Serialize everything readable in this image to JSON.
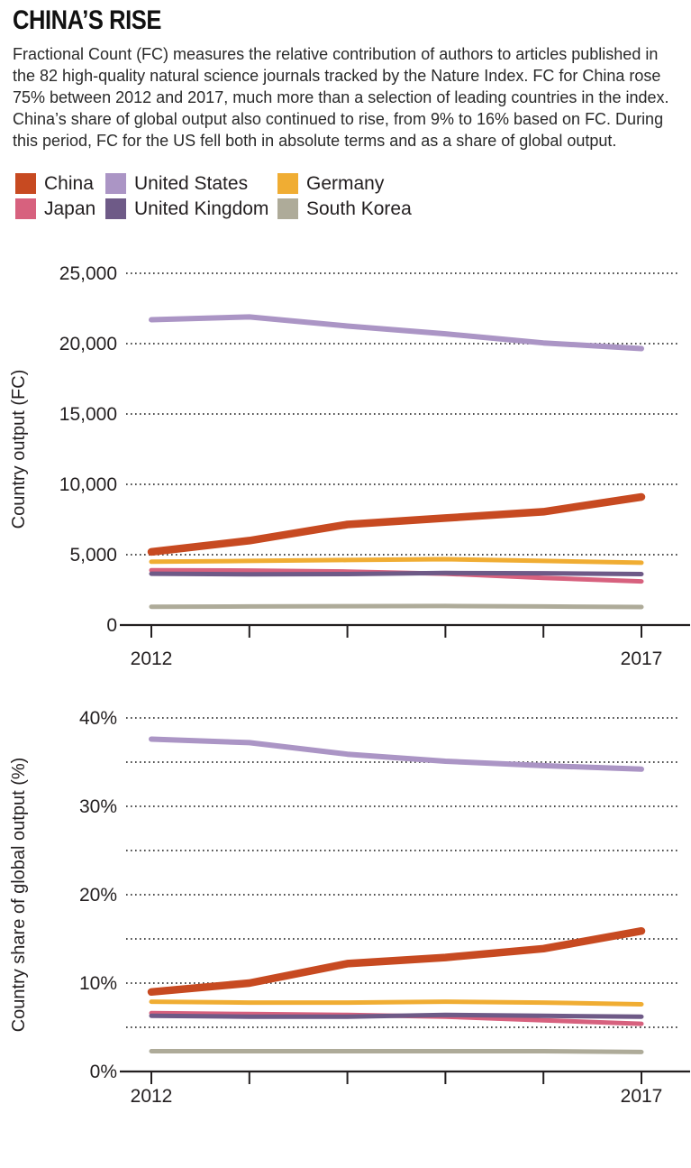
{
  "header": {
    "title": "CHINA’S RISE",
    "description": "Fractional Count (FC) measures the relative contribution of authors to articles published in the 82 high-quality natural science journals tracked by the Nature Index. FC for China rose 75% between 2012 and 2017, much more than a selection of leading countries in the index. China’s share of global output also continued to rise, from 9% to 16% based on FC. During this period, FC for the US fell both in absolute terms and as a share of global output.",
    "highlight_stats": {
      "china_fc_growth": "75%",
      "china_share_2012": "9%",
      "china_share_2017": "16%"
    }
  },
  "legend": {
    "position": "top-left",
    "items": [
      {
        "label": "China",
        "color": "#c74a21"
      },
      {
        "label": "United States",
        "color": "#ab95c5"
      },
      {
        "label": "Germany",
        "color": "#f0ad33"
      },
      {
        "label": "Japan",
        "color": "#d7617e"
      },
      {
        "label": "United Kingdom",
        "color": "#6e5a87"
      },
      {
        "label": "South Korea",
        "color": "#aeab99"
      }
    ]
  },
  "chart_data": [
    {
      "type": "line",
      "title": "",
      "ylabel": "Country output (FC)",
      "x": [
        2012,
        2013,
        2014,
        2015,
        2016,
        2017
      ],
      "xtick_labels": [
        "2012",
        "",
        "",
        "",
        "",
        "2017"
      ],
      "ylim": [
        0,
        26500
      ],
      "yticks": [
        0,
        5000,
        10000,
        15000,
        20000,
        25000
      ],
      "ytick_labels": [
        "0",
        "5,000",
        "10,000",
        "15,000",
        "20,000",
        "25,000"
      ],
      "grid": "dotted-horizontal",
      "series": [
        {
          "name": "United States",
          "color": "#ab95c5",
          "stroke_width": 6,
          "values": [
            21700,
            21900,
            21250,
            20700,
            20050,
            19650
          ]
        },
        {
          "name": "South Korea",
          "color": "#aeab99",
          "stroke_width": 5,
          "values": [
            1300,
            1320,
            1340,
            1350,
            1320,
            1280
          ]
        },
        {
          "name": "Germany",
          "color": "#f0ad33",
          "stroke_width": 5,
          "values": [
            4500,
            4560,
            4620,
            4680,
            4560,
            4430
          ]
        },
        {
          "name": "Japan",
          "color": "#d7617e",
          "stroke_width": 5,
          "values": [
            3900,
            3870,
            3800,
            3650,
            3350,
            3100
          ]
        },
        {
          "name": "United Kingdom",
          "color": "#6e5a87",
          "stroke_width": 5,
          "values": [
            3650,
            3600,
            3620,
            3700,
            3680,
            3620
          ]
        },
        {
          "name": "China",
          "color": "#c74a21",
          "stroke_width": 8.5,
          "values": [
            5200,
            6000,
            7150,
            7600,
            8050,
            9100
          ]
        }
      ]
    },
    {
      "type": "line",
      "title": "",
      "ylabel": "Country share of global output (%)",
      "x": [
        2012,
        2013,
        2014,
        2015,
        2016,
        2017
      ],
      "xtick_labels": [
        "2012",
        "",
        "",
        "",
        "",
        "2017"
      ],
      "ylim": [
        0,
        42
      ],
      "yticks": [
        0,
        5,
        10,
        15,
        20,
        25,
        30,
        35,
        40
      ],
      "ytick_labels": [
        "0%",
        "",
        "10%",
        "",
        "20%",
        "",
        "30%",
        "",
        "40%"
      ],
      "grid": "dotted-horizontal",
      "series": [
        {
          "name": "United States",
          "color": "#ab95c5",
          "stroke_width": 6,
          "values": [
            37.6,
            37.2,
            35.9,
            35.1,
            34.6,
            34.2
          ]
        },
        {
          "name": "South Korea",
          "color": "#aeab99",
          "stroke_width": 5,
          "values": [
            2.3,
            2.3,
            2.3,
            2.3,
            2.3,
            2.2
          ]
        },
        {
          "name": "Germany",
          "color": "#f0ad33",
          "stroke_width": 5,
          "values": [
            7.9,
            7.8,
            7.8,
            7.9,
            7.8,
            7.6
          ]
        },
        {
          "name": "Japan",
          "color": "#d7617e",
          "stroke_width": 5,
          "values": [
            6.6,
            6.5,
            6.4,
            6.2,
            5.8,
            5.4
          ]
        },
        {
          "name": "United Kingdom",
          "color": "#6e5a87",
          "stroke_width": 5,
          "values": [
            6.3,
            6.2,
            6.2,
            6.4,
            6.3,
            6.2
          ]
        },
        {
          "name": "China",
          "color": "#c74a21",
          "stroke_width": 8.5,
          "values": [
            9.0,
            10.0,
            12.2,
            12.9,
            13.9,
            15.9
          ]
        }
      ]
    }
  ],
  "style": {
    "grid_color": "#4a4a4a",
    "axis_color": "#231f20",
    "text_color": "#231f20"
  }
}
